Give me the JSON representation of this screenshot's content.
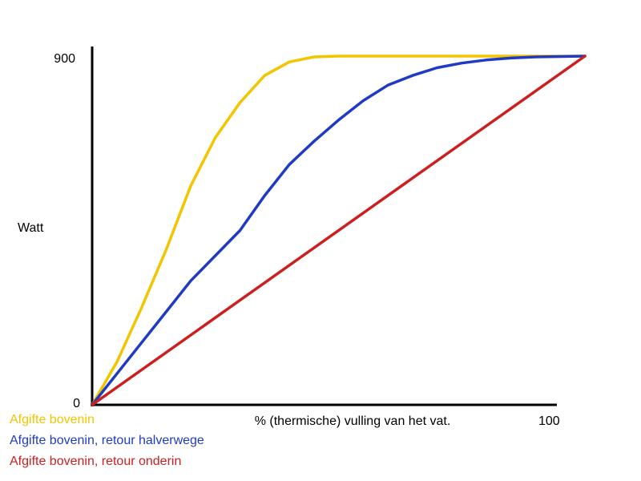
{
  "chart_data": {
    "type": "line",
    "title": "",
    "xlabel": "% (thermische) vulling van het vat.",
    "ylabel": "Watt",
    "xlim": [
      0,
      100
    ],
    "ylim": [
      0,
      900
    ],
    "grid": false,
    "legend_position": "bottom-left",
    "ticks": {
      "origin": "0",
      "x_max": "100",
      "y_max": "900"
    },
    "axis_color": "#000000",
    "series": [
      {
        "name": "Afgifte bovenin",
        "color": "#f2c500",
        "x": [
          0,
          5,
          10,
          15,
          20,
          25,
          30,
          35,
          40,
          45,
          50,
          55,
          60,
          70,
          80,
          90,
          100
        ],
        "y": [
          0,
          110,
          250,
          400,
          565,
          690,
          780,
          850,
          885,
          898,
          900,
          900,
          900,
          900,
          900,
          900,
          900
        ]
      },
      {
        "name": "Afgifte bovenin, retour halverwege",
        "color": "#1f3bc4",
        "x": [
          0,
          5,
          10,
          15,
          20,
          25,
          30,
          35,
          40,
          45,
          50,
          55,
          60,
          65,
          70,
          75,
          80,
          85,
          90,
          100
        ],
        "y": [
          0,
          80,
          160,
          240,
          320,
          385,
          450,
          540,
          620,
          680,
          735,
          785,
          825,
          850,
          870,
          882,
          890,
          895,
          898,
          900
        ]
      },
      {
        "name": "Afgifte bovenin, retour onderin",
        "color": "#cc2020",
        "x": [
          0,
          100
        ],
        "y": [
          0,
          900
        ]
      }
    ]
  }
}
